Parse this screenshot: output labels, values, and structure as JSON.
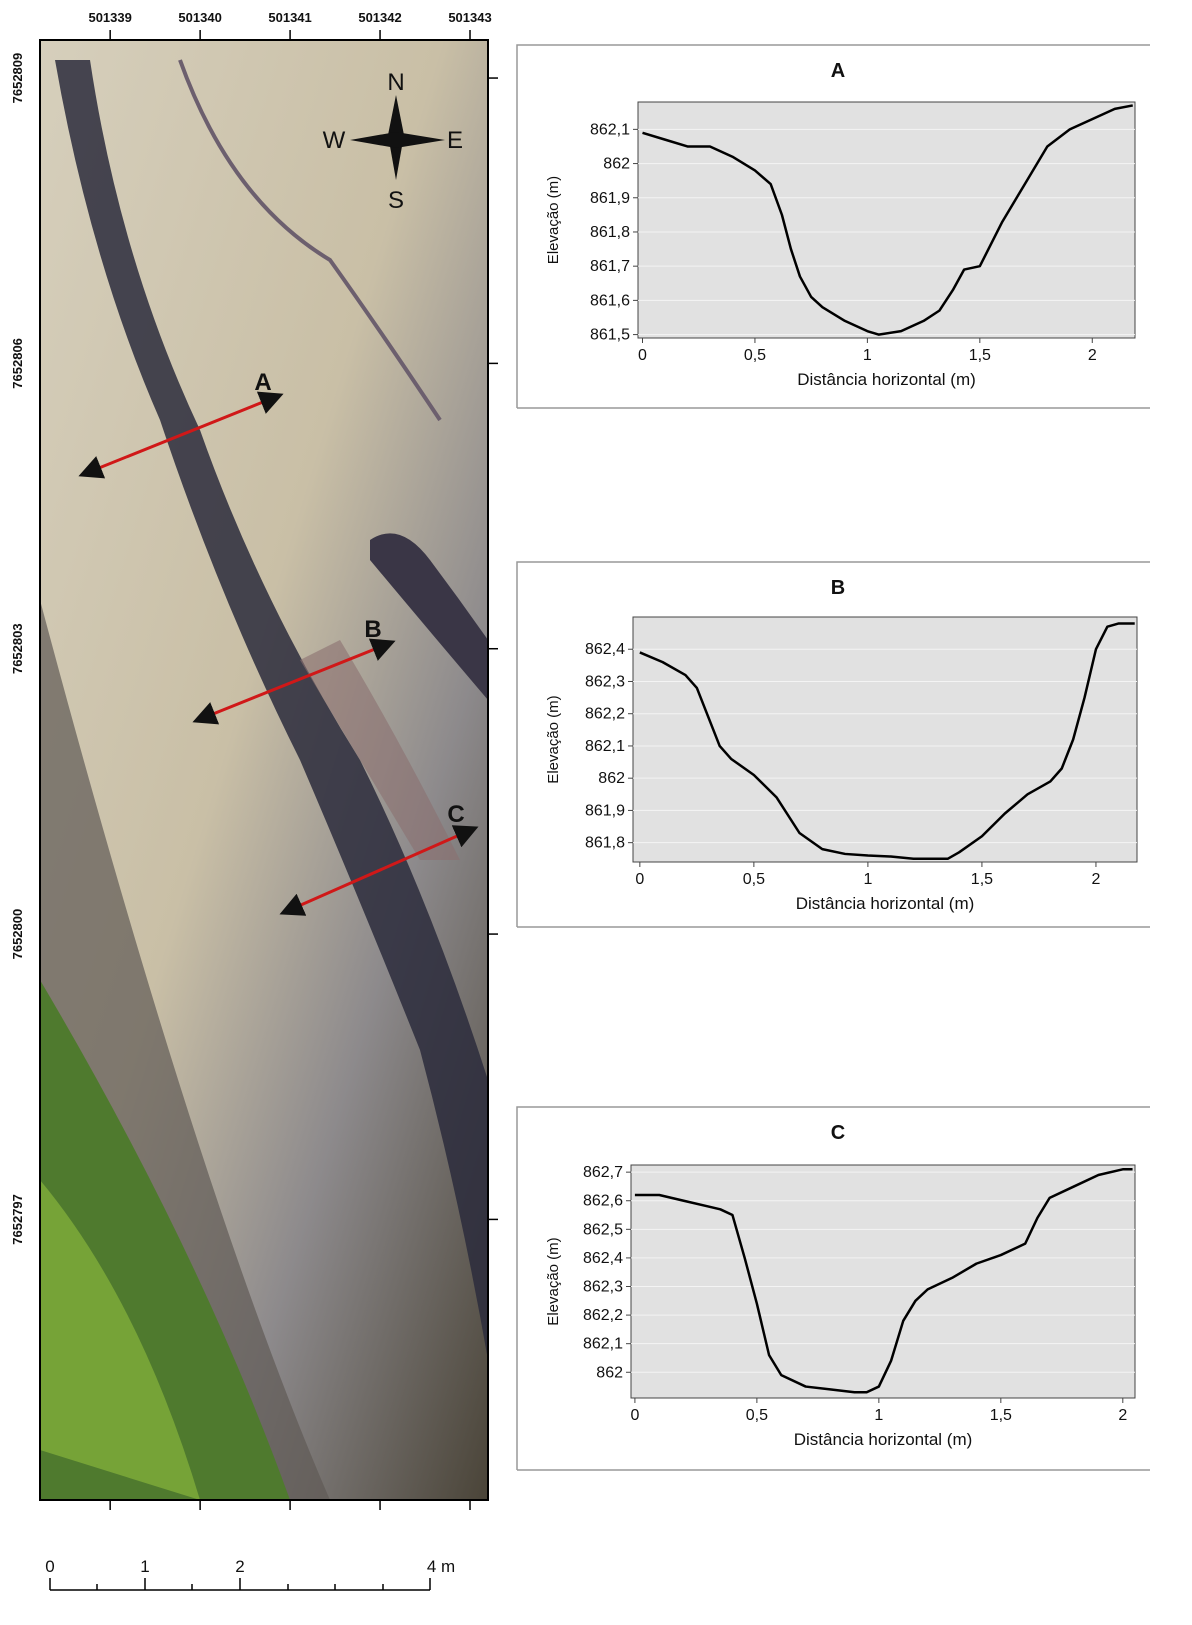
{
  "map": {
    "xlim": [
      501338.22,
      501343.2
    ],
    "ylim": [
      7652794.05,
      7652809.4
    ],
    "xticks": [
      501339,
      501340,
      501341,
      501342,
      501343
    ],
    "yticks": [
      7652809,
      7652806,
      7652803,
      7652800,
      7652797
    ],
    "compass": [
      "N",
      "E",
      "S",
      "W"
    ],
    "profiles": [
      "A",
      "B",
      "C"
    ],
    "scale_labels": [
      "0",
      "1",
      "2",
      "4 m"
    ]
  },
  "chart_data": [
    {
      "type": "line",
      "title": "A",
      "x_label": "Distância horizontal (m)",
      "y_label": "Elevação (m)",
      "color": "#000000",
      "grid": true,
      "x": [
        0,
        0.1,
        0.2,
        0.3,
        0.4,
        0.5,
        0.57,
        0.62,
        0.66,
        0.7,
        0.75,
        0.8,
        0.9,
        1.0,
        1.05,
        1.15,
        1.25,
        1.32,
        1.38,
        1.43,
        1.5,
        1.6,
        1.7,
        1.8,
        1.9,
        2.0,
        2.1,
        2.18
      ],
      "values": [
        862.09,
        862.07,
        862.05,
        862.05,
        862.02,
        861.98,
        861.94,
        861.85,
        861.75,
        861.67,
        861.61,
        861.58,
        861.54,
        861.51,
        861.5,
        861.51,
        861.54,
        861.57,
        861.63,
        861.69,
        861.7,
        861.83,
        861.94,
        862.05,
        862.1,
        862.13,
        862.16,
        862.17
      ],
      "xlim": [
        -0.02,
        2.19
      ],
      "ylim": [
        861.49,
        862.18
      ],
      "xticks": [
        0,
        {
          "value": 0.5,
          "label": "0,5"
        },
        1,
        {
          "value": 1.5,
          "label": "1,5"
        },
        2
      ],
      "yticks": [
        {
          "value": 861.5,
          "label": "861,5"
        },
        {
          "value": 861.6,
          "label": "861,6"
        },
        {
          "value": 861.7,
          "label": "861,7"
        },
        {
          "value": 861.8,
          "label": "861,8"
        },
        {
          "value": 861.9,
          "label": "861,9"
        },
        862,
        {
          "value": 862.1,
          "label": "862,1"
        }
      ]
    },
    {
      "type": "line",
      "title": "B",
      "x_label": "Distância horizontal (m)",
      "y_label": "Elevação (m)",
      "color": "#000000",
      "grid": true,
      "x": [
        0,
        0.1,
        0.2,
        0.25,
        0.3,
        0.35,
        0.4,
        0.5,
        0.6,
        0.7,
        0.8,
        0.9,
        1.0,
        1.1,
        1.2,
        1.3,
        1.35,
        1.4,
        1.5,
        1.6,
        1.7,
        1.8,
        1.85,
        1.9,
        1.95,
        2.0,
        2.05,
        2.1,
        2.17
      ],
      "values": [
        862.39,
        862.36,
        862.32,
        862.28,
        862.19,
        862.1,
        862.06,
        862.01,
        861.94,
        861.83,
        861.78,
        861.765,
        861.76,
        861.757,
        861.75,
        861.75,
        861.75,
        861.77,
        861.82,
        861.89,
        861.95,
        861.99,
        862.03,
        862.12,
        862.25,
        862.4,
        862.47,
        862.48,
        862.48
      ],
      "xlim": [
        -0.03,
        2.18
      ],
      "ylim": [
        861.74,
        862.5
      ],
      "xticks": [
        0,
        {
          "value": 0.5,
          "label": "0,5"
        },
        1,
        {
          "value": 1.5,
          "label": "1,5"
        },
        2
      ],
      "yticks": [
        {
          "value": 861.8,
          "label": "861,8"
        },
        {
          "value": 861.9,
          "label": "861,9"
        },
        862,
        {
          "value": 862.1,
          "label": "862,1"
        },
        {
          "value": 862.2,
          "label": "862,2"
        },
        {
          "value": 862.3,
          "label": "862,3"
        },
        {
          "value": 862.4,
          "label": "862,4"
        }
      ]
    },
    {
      "type": "line",
      "title": "C",
      "x_label": "Distância horizontal (m)",
      "y_label": "Elevação (m)",
      "color": "#000000",
      "grid": true,
      "x": [
        0,
        0.1,
        0.2,
        0.3,
        0.35,
        0.4,
        0.45,
        0.5,
        0.55,
        0.6,
        0.7,
        0.8,
        0.9,
        0.95,
        1.0,
        1.05,
        1.1,
        1.15,
        1.2,
        1.3,
        1.4,
        1.5,
        1.6,
        1.65,
        1.7,
        1.8,
        1.9,
        2.0,
        2.04
      ],
      "values": [
        862.62,
        862.62,
        862.6,
        862.58,
        862.57,
        862.55,
        862.4,
        862.24,
        862.06,
        861.99,
        861.95,
        861.94,
        861.93,
        861.93,
        861.95,
        862.04,
        862.18,
        862.25,
        862.29,
        862.33,
        862.38,
        862.41,
        862.45,
        862.54,
        862.61,
        862.65,
        862.69,
        862.71,
        862.71
      ],
      "xlim": [
        -0.016,
        2.05
      ],
      "ylim": [
        861.91,
        862.725
      ],
      "xticks": [
        0,
        {
          "value": 0.5,
          "label": "0,5"
        },
        1,
        {
          "value": 1.5,
          "label": "1,5"
        },
        2
      ],
      "yticks": [
        862,
        {
          "value": 862.1,
          "label": "862,1"
        },
        {
          "value": 862.2,
          "label": "862,2"
        },
        {
          "value": 862.3,
          "label": "862,3"
        },
        {
          "value": 862.4,
          "label": "862,4"
        },
        {
          "value": 862.5,
          "label": "862,5"
        },
        {
          "value": 862.6,
          "label": "862,6"
        },
        {
          "value": 862.7,
          "label": "862,7"
        }
      ]
    }
  ]
}
